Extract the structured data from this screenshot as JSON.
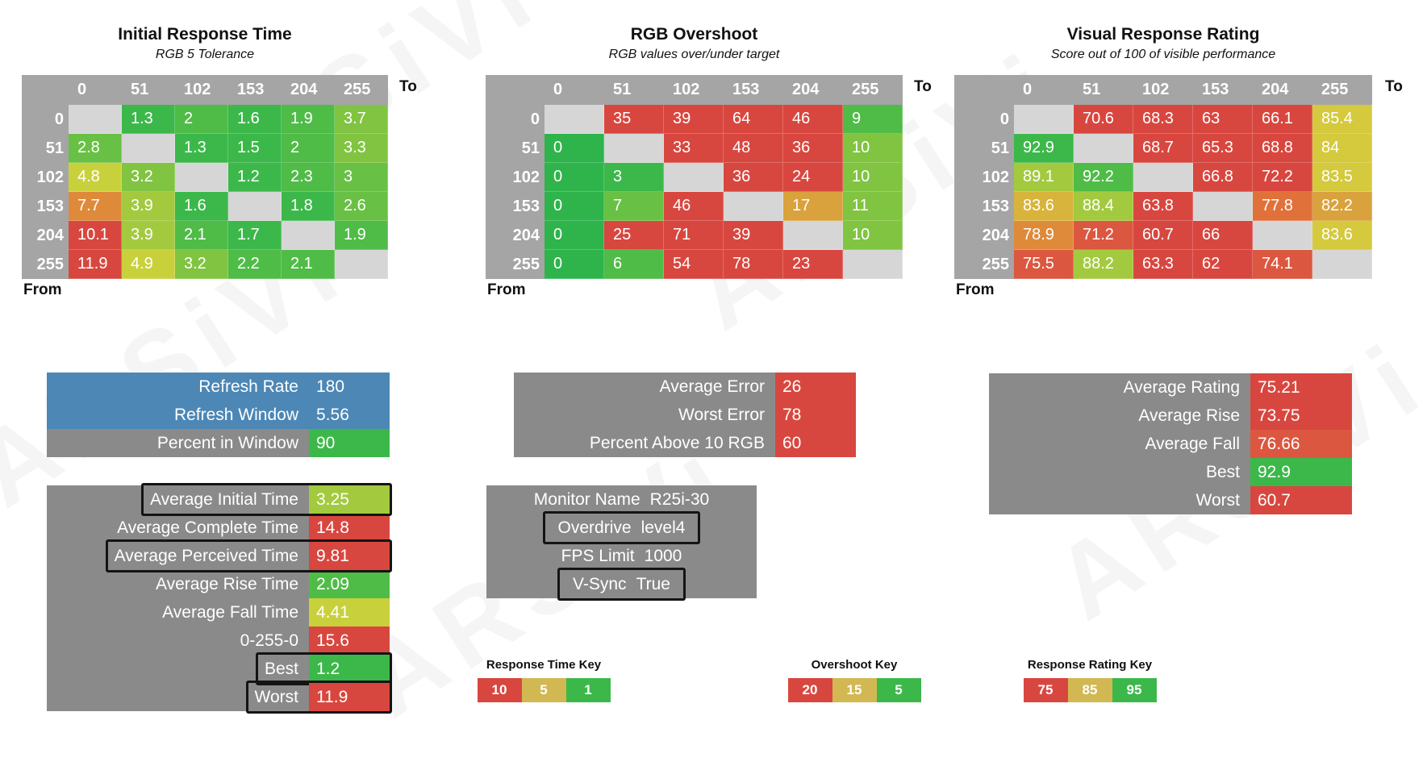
{
  "watermark_text": "ARSiVi",
  "palette": {
    "blue": "#4c87b5",
    "panelGray": "#8a8a8a",
    "headerGray": "#a5a5a5",
    "diag": "#d6d6d6",
    "g1": "#2eb44b",
    "g2": "#3cb84a",
    "g3": "#4fbc47",
    "g4": "#68c144",
    "g5": "#80c441",
    "g6": "#a3ca3f",
    "y1": "#c8d13c",
    "y2": "#d5c93d",
    "y3": "#d8b43c",
    "o1": "#d9a23c",
    "o2": "#de8a3a",
    "o3": "#e0713a",
    "r1": "#dc5740",
    "r2": "#d8473f",
    "tan": "#d2b853"
  },
  "chart_data": [
    {
      "type": "heatmap",
      "title": "Initial Response Time",
      "subtitle": "RGB 5 Tolerance",
      "x_axis_label": "To",
      "y_axis_label": "From",
      "categories": [
        "0",
        "51",
        "102",
        "153",
        "204",
        "255"
      ],
      "values": [
        [
          null,
          1.3,
          2,
          1.6,
          1.9,
          3.7
        ],
        [
          2.8,
          null,
          1.3,
          1.5,
          2,
          3.3
        ],
        [
          4.8,
          3.2,
          null,
          1.2,
          2.3,
          3
        ],
        [
          7.7,
          3.9,
          1.6,
          null,
          1.8,
          2.6
        ],
        [
          10.1,
          3.9,
          2.1,
          1.7,
          null,
          1.9
        ],
        [
          11.9,
          4.9,
          3.2,
          2.2,
          2.1,
          null
        ]
      ],
      "cell_colors": [
        [
          null,
          "g2",
          "g3",
          "g2",
          "g3",
          "g5"
        ],
        [
          "g4",
          null,
          "g2",
          "g2",
          "g3",
          "g5"
        ],
        [
          "y1",
          "g5",
          null,
          "g2",
          "g3",
          "g4"
        ],
        [
          "o2",
          "g6",
          "g2",
          null,
          "g2",
          "g4"
        ],
        [
          "r2",
          "g6",
          "g3",
          "g2",
          null,
          "g3"
        ],
        [
          "r2",
          "y1",
          "g5",
          "g3",
          "g3",
          null
        ]
      ]
    },
    {
      "type": "heatmap",
      "title": "RGB Overshoot",
      "subtitle": "RGB values over/under target",
      "x_axis_label": "To",
      "y_axis_label": "From",
      "categories": [
        "0",
        "51",
        "102",
        "153",
        "204",
        "255"
      ],
      "values": [
        [
          null,
          35,
          39,
          64,
          46,
          9
        ],
        [
          0,
          null,
          33,
          48,
          36,
          10
        ],
        [
          0,
          3,
          null,
          36,
          24,
          10
        ],
        [
          0,
          7,
          46,
          null,
          17,
          11
        ],
        [
          0,
          25,
          71,
          39,
          null,
          10
        ],
        [
          0,
          6,
          54,
          78,
          23,
          null
        ]
      ],
      "cell_colors": [
        [
          null,
          "r2",
          "r2",
          "r2",
          "r2",
          "g3"
        ],
        [
          "g1",
          null,
          "r2",
          "r2",
          "r2",
          "g5"
        ],
        [
          "g1",
          "g2",
          null,
          "r2",
          "r2",
          "g5"
        ],
        [
          "g1",
          "g4",
          "r2",
          null,
          "o1",
          "g5"
        ],
        [
          "g1",
          "r2",
          "r2",
          "r2",
          null,
          "g5"
        ],
        [
          "g1",
          "g3",
          "r2",
          "r2",
          "r2",
          null
        ]
      ]
    },
    {
      "type": "heatmap",
      "title": "Visual Response Rating",
      "subtitle": "Score out of 100 of visible performance",
      "x_axis_label": "To",
      "y_axis_label": "From",
      "categories": [
        "0",
        "51",
        "102",
        "153",
        "204",
        "255"
      ],
      "values": [
        [
          null,
          70.6,
          68.3,
          63,
          66.1,
          85.4
        ],
        [
          92.9,
          null,
          68.7,
          65.3,
          68.8,
          84
        ],
        [
          89.1,
          92.2,
          null,
          66.8,
          72.2,
          83.5
        ],
        [
          83.6,
          88.4,
          63.8,
          null,
          77.8,
          82.2
        ],
        [
          78.9,
          71.2,
          60.7,
          66,
          null,
          83.6
        ],
        [
          75.5,
          88.2,
          63.3,
          62,
          74.1,
          null
        ]
      ],
      "cell_colors": [
        [
          null,
          "r2",
          "r2",
          "r2",
          "r2",
          "y2"
        ],
        [
          "g2",
          null,
          "r2",
          "r2",
          "r2",
          "y2"
        ],
        [
          "g6",
          "g3",
          null,
          "r2",
          "r2",
          "y2"
        ],
        [
          "y3",
          "g6",
          "r2",
          null,
          "o3",
          "o1"
        ],
        [
          "o2",
          "r1",
          "r2",
          "r2",
          null,
          "y2"
        ],
        [
          "r1",
          "g6",
          "r2",
          "r2",
          "r1",
          null
        ]
      ]
    }
  ],
  "panels": {
    "refresh": {
      "rows": [
        {
          "label": "Refresh Rate",
          "value": 180,
          "row_color": "blue"
        },
        {
          "label": "Refresh Window",
          "value": 5.56,
          "row_color": "blue"
        },
        {
          "label": "Percent in Window",
          "value": 90,
          "value_color": "g2"
        }
      ]
    },
    "times": {
      "rows": [
        {
          "label": "Average Initial Time",
          "value": 3.25,
          "value_color": "g6",
          "boxed": true
        },
        {
          "label": "Average Complete Time",
          "value": 14.8,
          "value_color": "r2"
        },
        {
          "label": "Average Perceived Time",
          "value": 9.81,
          "value_color": "r2",
          "boxed": true
        },
        {
          "label": "Average Rise Time",
          "value": 2.09,
          "value_color": "g3"
        },
        {
          "label": "Average Fall Time",
          "value": 4.41,
          "value_color": "y1"
        },
        {
          "label": "0-255-0",
          "value": 15.6,
          "value_color": "r2"
        },
        {
          "label": "Best",
          "value": 1.2,
          "value_color": "g2",
          "boxed": true
        },
        {
          "label": "Worst",
          "value": 11.9,
          "value_color": "r2",
          "boxed": true
        }
      ]
    },
    "overshoot_summary": {
      "rows": [
        {
          "label": "Average Error",
          "value": 26,
          "value_color": "r2"
        },
        {
          "label": "Worst Error",
          "value": 78,
          "value_color": "r2"
        },
        {
          "label": "Percent Above 10 RGB",
          "value": 60,
          "value_color": "r2"
        }
      ]
    },
    "monitor": {
      "centered": true,
      "rows": [
        {
          "label": "Monitor Name",
          "value": "R25i-30"
        },
        {
          "label": "Overdrive",
          "value": "level4",
          "boxed": true
        },
        {
          "label": "FPS Limit",
          "value": 1000
        },
        {
          "label": "V-Sync",
          "value": "True",
          "boxed": true
        }
      ]
    },
    "rating_summary": {
      "value_width": 126,
      "rows": [
        {
          "label": "Average Rating",
          "value": 75.21,
          "value_color": "r2"
        },
        {
          "label": "Average Rise",
          "value": 73.75,
          "value_color": "r2"
        },
        {
          "label": "Average Fall",
          "value": 76.66,
          "value_color": "r1"
        },
        {
          "label": "Best",
          "value": 92.9,
          "value_color": "g2"
        },
        {
          "label": "Worst",
          "value": 60.7,
          "value_color": "r2"
        }
      ]
    }
  },
  "keys": [
    {
      "title": "Response Time Key",
      "cells": [
        {
          "v": 10,
          "c": "r2"
        },
        {
          "v": 5,
          "c": "tan"
        },
        {
          "v": 1,
          "c": "g2"
        }
      ]
    },
    {
      "title": "Overshoot Key",
      "cells": [
        {
          "v": 20,
          "c": "r2"
        },
        {
          "v": 15,
          "c": "tan"
        },
        {
          "v": 5,
          "c": "g2"
        }
      ]
    },
    {
      "title": "Response Rating Key",
      "cells": [
        {
          "v": 75,
          "c": "r2"
        },
        {
          "v": 85,
          "c": "tan"
        },
        {
          "v": 95,
          "c": "g2"
        }
      ]
    }
  ]
}
